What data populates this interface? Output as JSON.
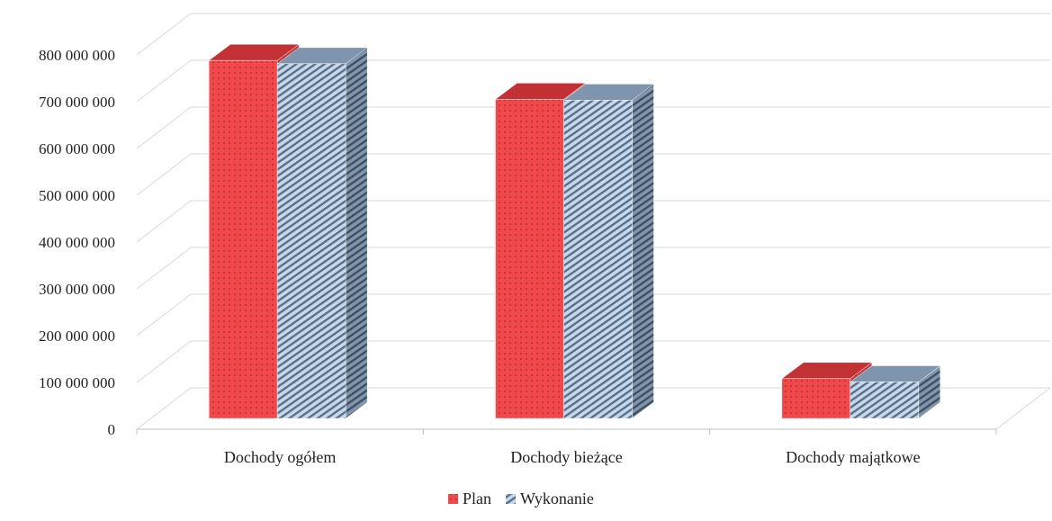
{
  "chart_data": {
    "type": "bar",
    "title": "",
    "xlabel": "",
    "ylabel": "",
    "categories": [
      "Dochody ogółem",
      "Dochody bieżące",
      "Dochody majątkowe"
    ],
    "series": [
      {
        "name": "Plan",
        "values": [
          765000000,
          682000000,
          85000000
        ],
        "color": "#f0484b",
        "pattern": "dots"
      },
      {
        "name": "Wykonanie",
        "values": [
          758000000,
          680000000,
          78000000
        ],
        "color": "#b5cde8",
        "pattern": "diagonal-hatch"
      }
    ],
    "ylim": [
      0,
      800000000
    ],
    "yticks": [
      0,
      100000000,
      200000000,
      300000000,
      400000000,
      500000000,
      600000000,
      700000000,
      800000000
    ],
    "ytick_labels": [
      "0",
      "100 000 000",
      "200 000 000",
      "300 000 000",
      "400 000 000",
      "500 000 000",
      "600 000 000",
      "700 000 000",
      "800 000 000"
    ],
    "grid": true,
    "legend": "bottom-center",
    "three_d": true
  }
}
